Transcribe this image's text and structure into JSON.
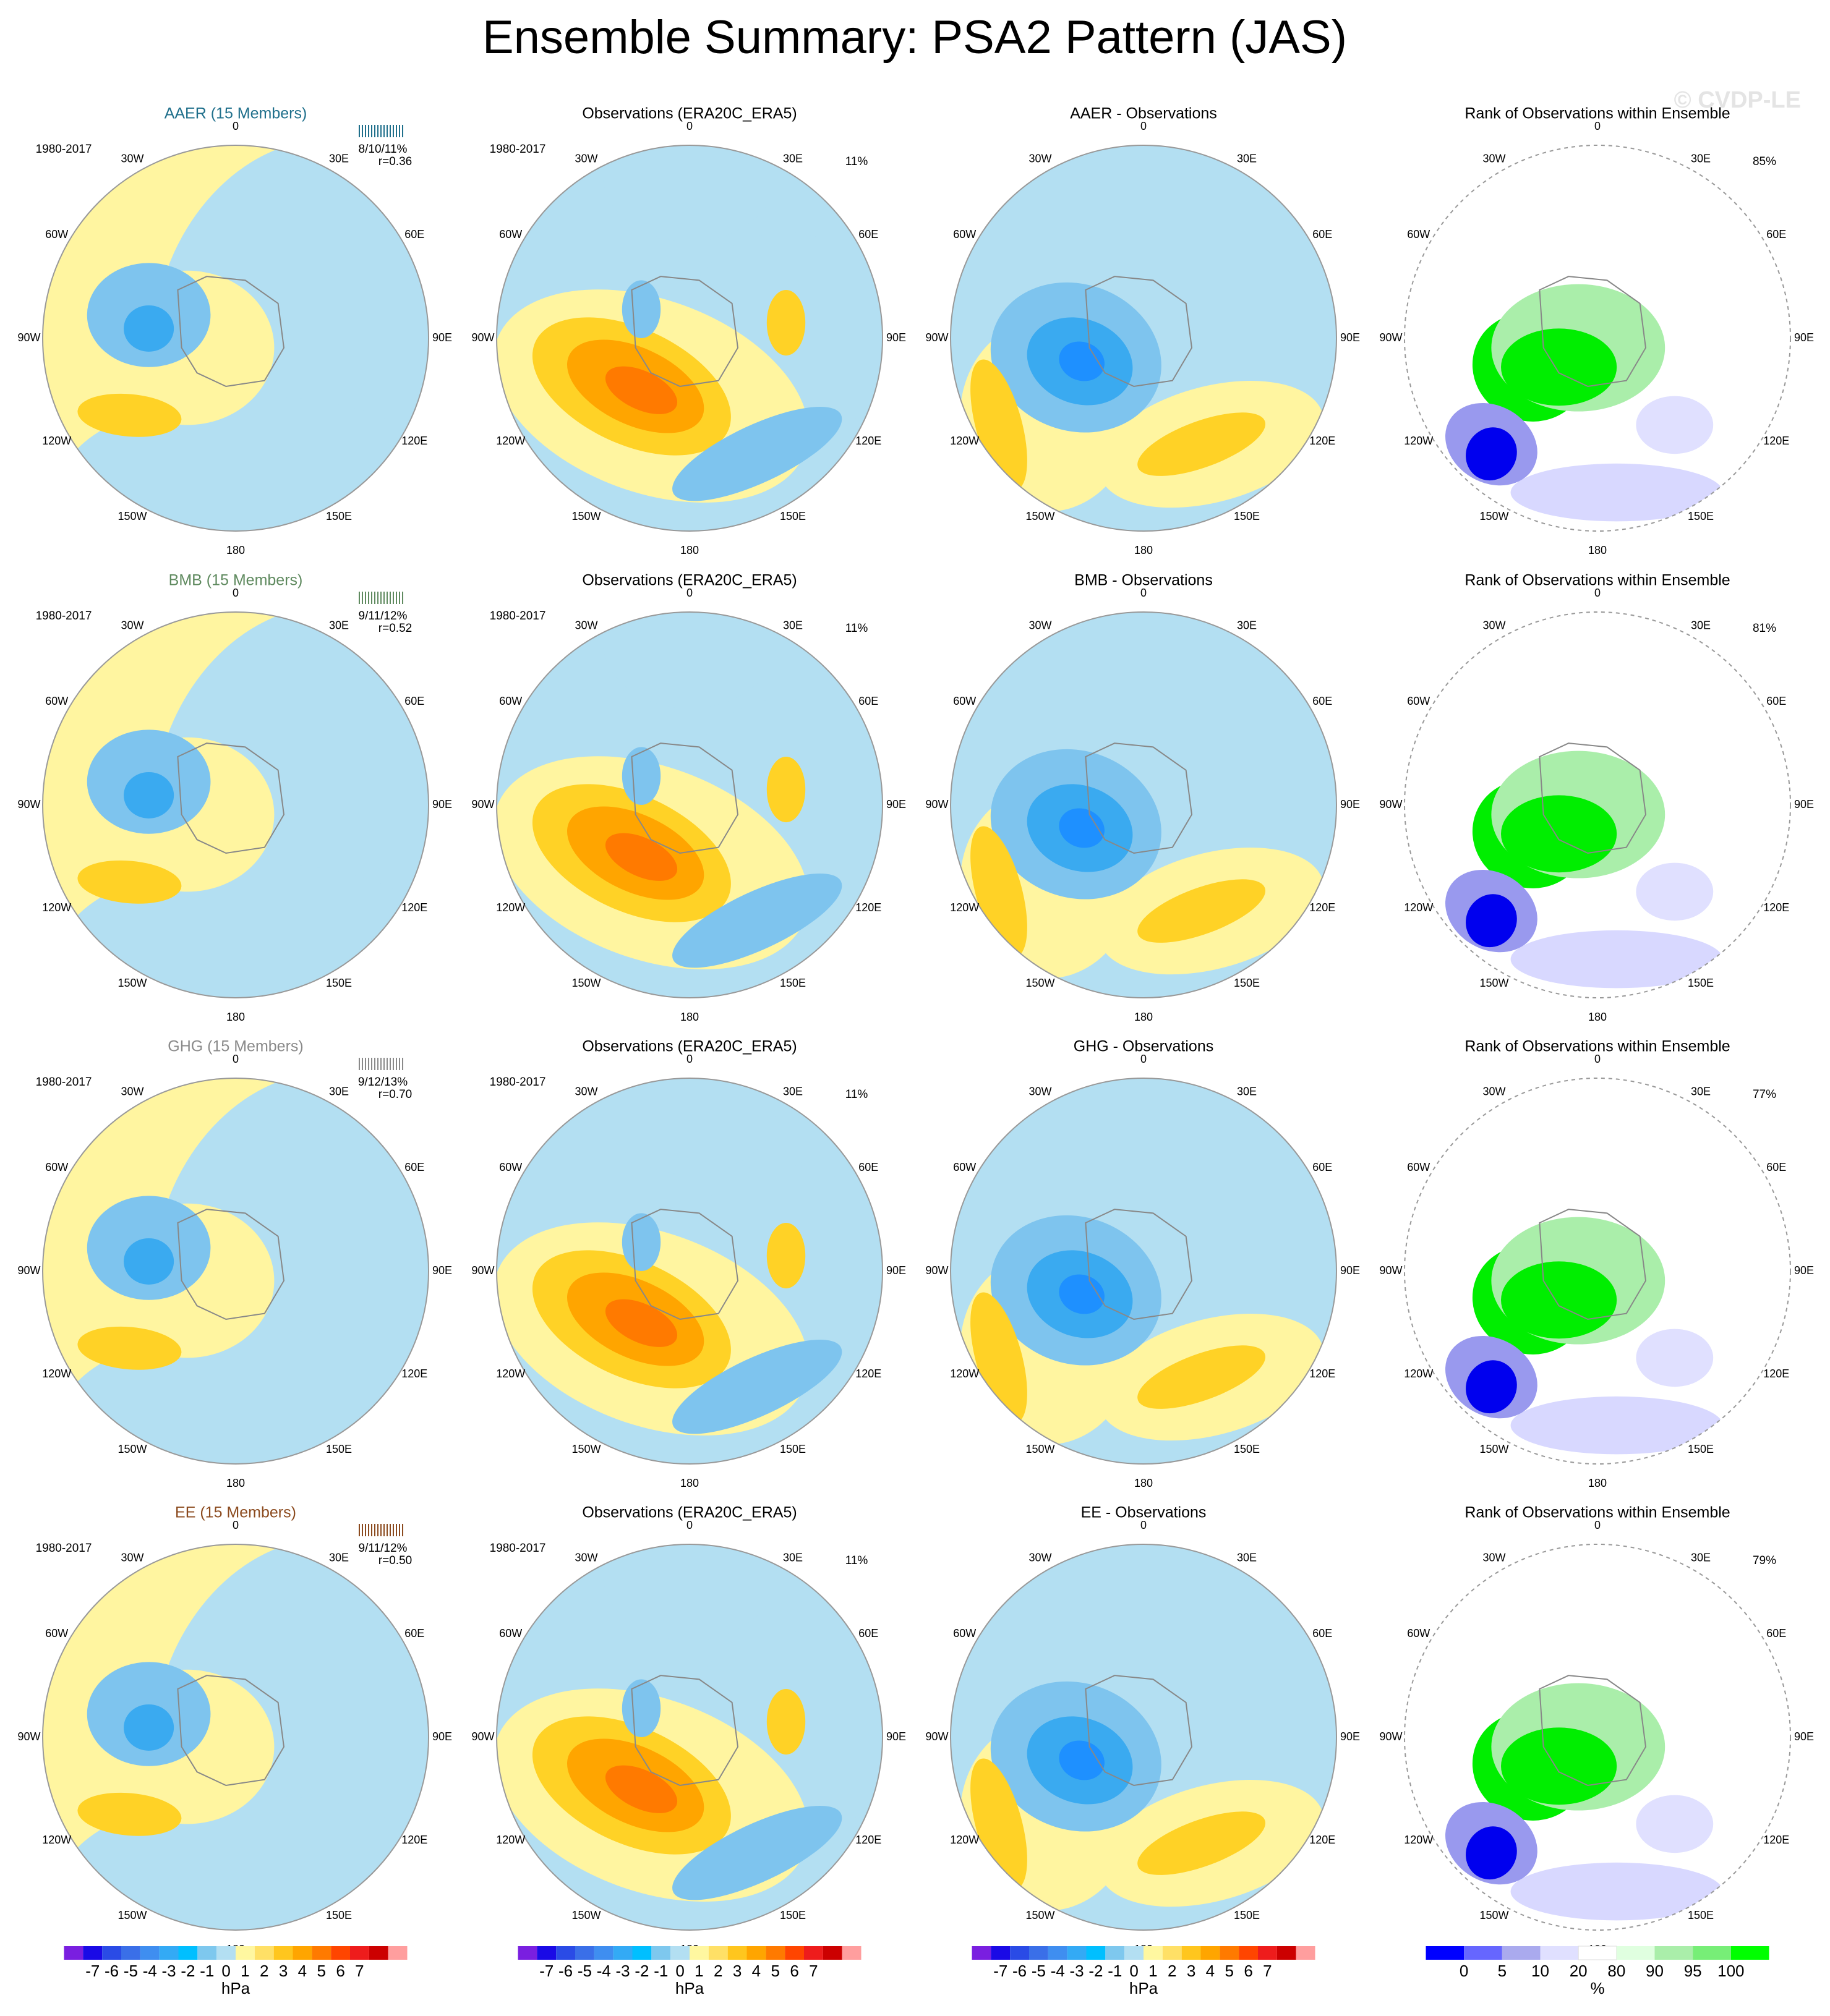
{
  "title": "Ensemble Summary: PSA2 Pattern (JAS)",
  "watermark": "© CVDP-LE",
  "longitude_labels": [
    "0",
    "30E",
    "60E",
    "90E",
    "120E",
    "150E",
    "180",
    "150W",
    "120W",
    "90W",
    "60W",
    "30W"
  ],
  "rows": [
    {
      "ensemble": {
        "title": "AAER (15 Members)",
        "title_color": "#1f6f8b",
        "period": "1980-2017",
        "stats": "8/10/11%",
        "corr": "r=0.36"
      },
      "observations": {
        "title": "Observations (ERA20C_ERA5)",
        "period": "1980-2017",
        "variance": "11%"
      },
      "difference": {
        "title": "AAER - Observations"
      },
      "rank": {
        "title": "Rank of Observations within Ensemble",
        "percent": "85%"
      }
    },
    {
      "ensemble": {
        "title": "BMB (15 Members)",
        "title_color": "#5f8a5f",
        "period": "1980-2017",
        "stats": "9/11/12%",
        "corr": "r=0.52"
      },
      "observations": {
        "title": "Observations (ERA20C_ERA5)",
        "period": "1980-2017",
        "variance": "11%"
      },
      "difference": {
        "title": "BMB - Observations"
      },
      "rank": {
        "title": "Rank of Observations within Ensemble",
        "percent": "81%"
      }
    },
    {
      "ensemble": {
        "title": "GHG (15 Members)",
        "title_color": "#8a8a8a",
        "period": "1980-2017",
        "stats": "9/12/13%",
        "corr": "r=0.70"
      },
      "observations": {
        "title": "Observations (ERA20C_ERA5)",
        "period": "1980-2017",
        "variance": "11%"
      },
      "difference": {
        "title": "GHG - Observations"
      },
      "rank": {
        "title": "Rank of Observations within Ensemble",
        "percent": "77%"
      }
    },
    {
      "ensemble": {
        "title": "EE (15 Members)",
        "title_color": "#8b4a1e",
        "period": "1980-2017",
        "stats": "9/11/12%",
        "corr": "r=0.50"
      },
      "observations": {
        "title": "Observations (ERA20C_ERA5)",
        "period": "1980-2017",
        "variance": "11%"
      },
      "difference": {
        "title": "EE - Observations"
      },
      "rank": {
        "title": "Rank of Observations within Ensemble",
        "percent": "79%"
      }
    }
  ],
  "colorbars": [
    {
      "labels": [
        "-7",
        "-6",
        "-5",
        "-4",
        "-3",
        "-2",
        "-1",
        "0",
        "1",
        "2",
        "3",
        "4",
        "5",
        "6",
        "7"
      ],
      "units": "hPa"
    },
    {
      "labels": [
        "-7",
        "-6",
        "-5",
        "-4",
        "-3",
        "-2",
        "-1",
        "0",
        "1",
        "2",
        "3",
        "4",
        "5",
        "6",
        "7"
      ],
      "units": "hPa"
    },
    {
      "labels": [
        "-7",
        "-6",
        "-5",
        "-4",
        "-3",
        "-2",
        "-1",
        "0",
        "1",
        "2",
        "3",
        "4",
        "5",
        "6",
        "7"
      ],
      "units": "hPa"
    },
    {
      "labels": [
        "0",
        "5",
        "10",
        "20",
        "80",
        "90",
        "95",
        "100"
      ],
      "units": "%"
    }
  ]
}
